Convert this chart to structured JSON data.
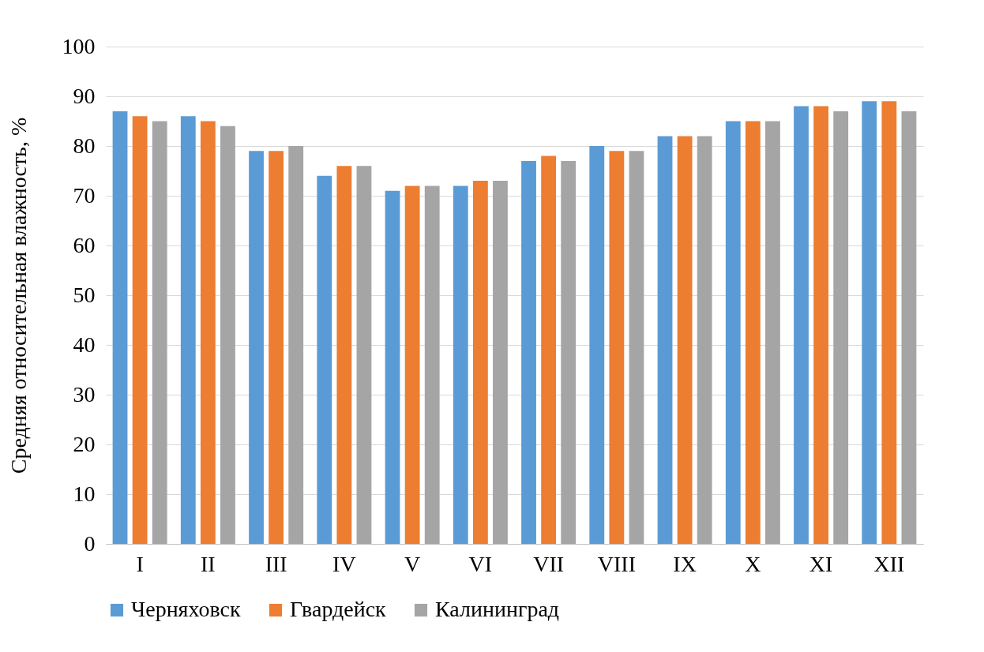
{
  "chart_data": {
    "type": "bar",
    "ylabel": "Средняя относительная влажность, %",
    "categories": [
      "I",
      "II",
      "III",
      "IV",
      "V",
      "VI",
      "VII",
      "VIII",
      "IX",
      "X",
      "XI",
      "XII"
    ],
    "series": [
      {
        "name": "Черняховск",
        "color": "#5b9bd5",
        "values": [
          87,
          86,
          79,
          74,
          71,
          72,
          77,
          80,
          82,
          85,
          88,
          89
        ]
      },
      {
        "name": "Гвардейск",
        "color": "#ed7d31",
        "values": [
          86,
          85,
          79,
          76,
          72,
          73,
          78,
          79,
          82,
          85,
          88,
          89
        ]
      },
      {
        "name": "Калининград",
        "color": "#a5a5a5",
        "values": [
          85,
          84,
          80,
          76,
          72,
          73,
          77,
          79,
          82,
          85,
          87,
          87
        ]
      }
    ],
    "ylim": [
      0,
      100
    ],
    "yticks": [
      0,
      10,
      20,
      30,
      40,
      50,
      60,
      70,
      80,
      90,
      100
    ],
    "grid": "y",
    "legend": "bottom"
  }
}
